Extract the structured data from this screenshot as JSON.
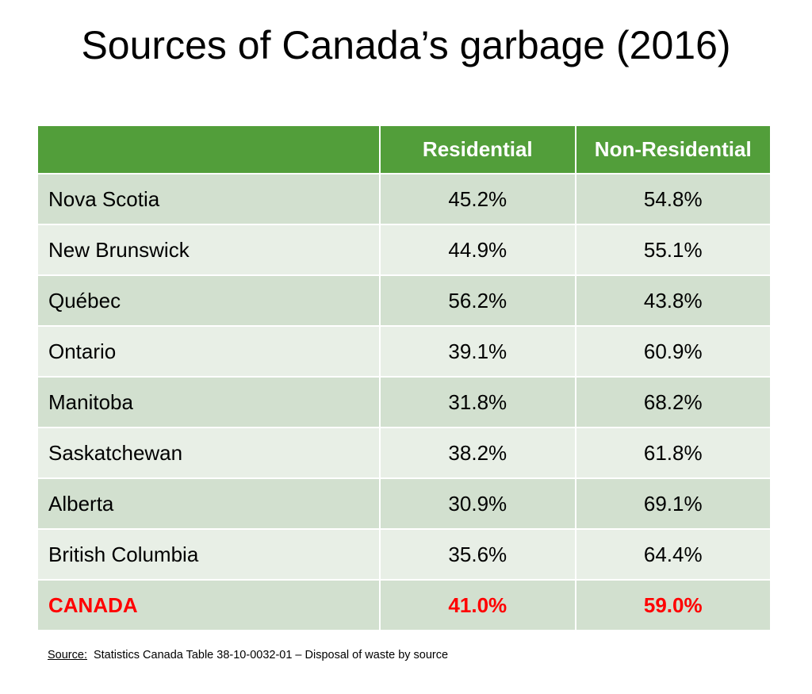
{
  "title": "Sources of Canada’s garbage (2016)",
  "accent_color": "#529e3a",
  "highlight_color": "#ff0000",
  "table": {
    "headers": [
      "",
      "Residential",
      "Non-Residential"
    ],
    "rows": [
      {
        "region": "Nova Scotia",
        "residential": "45.2%",
        "non_residential": "54.8%"
      },
      {
        "region": "New Brunswick",
        "residential": "44.9%",
        "non_residential": "55.1%"
      },
      {
        "region": "Québec",
        "residential": "56.2%",
        "non_residential": "43.8%"
      },
      {
        "region": "Ontario",
        "residential": "39.1%",
        "non_residential": "60.9%"
      },
      {
        "region": "Manitoba",
        "residential": "31.8%",
        "non_residential": "68.2%"
      },
      {
        "region": "Saskatchewan",
        "residential": "38.2%",
        "non_residential": "61.8%"
      },
      {
        "region": "Alberta",
        "residential": "30.9%",
        "non_residential": "69.1%"
      },
      {
        "region": "British Columbia",
        "residential": "35.6%",
        "non_residential": "64.4%"
      },
      {
        "region": "CANADA",
        "residential": "41.0%",
        "non_residential": "59.0%"
      }
    ]
  },
  "source": {
    "label": "Source:",
    "text": "Statistics Canada Table 38-10-0032-01 – Disposal of waste by source"
  }
}
